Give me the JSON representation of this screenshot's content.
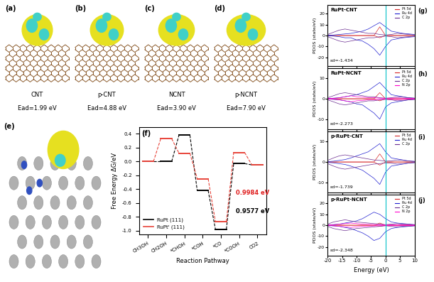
{
  "structures": [
    {
      "label": "(a)",
      "name": "CNT",
      "energy": "Ead=1.99 eV"
    },
    {
      "label": "(b)",
      "name": "p-CNT",
      "energy": "Ead=4.88 eV"
    },
    {
      "label": "(c)",
      "name": "NCNT",
      "energy": "Ead=3.90 eV"
    },
    {
      "label": "(d)",
      "name": "p-NCNT",
      "energy": "Ead=7.90 eV"
    }
  ],
  "panel_e": {
    "label": "(e)"
  },
  "chart_data": [
    {
      "panel": "(f)",
      "type": "profile",
      "categories": [
        "CH3OH",
        "CH2OH",
        "*CHOH",
        "*COH",
        "*CO",
        "*COOH",
        "CO2"
      ],
      "xlabel": "Reaction Pathway",
      "ylabel": "Free Energy ΔG/eV",
      "ylim": [
        -1.05,
        0.5
      ],
      "yticks": [
        -1.0,
        -0.8,
        -0.6,
        -0.4,
        -0.2,
        0.0,
        0.2,
        0.4
      ],
      "legend": "lower left",
      "series": [
        {
          "name": "RuPt (111)",
          "color": "#000000",
          "values": [
            0.0,
            0.0,
            0.38,
            -0.42,
            -0.98,
            -0.03,
            -0.05
          ]
        },
        {
          "name": "RuPt' (111)",
          "color": "#e8443a",
          "values": [
            0.0,
            0.33,
            0.12,
            -0.25,
            -0.87,
            0.13,
            -0.05
          ]
        }
      ],
      "annotations": [
        {
          "text": "0.9984 eV",
          "color": "#e02020"
        },
        {
          "text": "0.9577 eV",
          "color": "#000000"
        }
      ]
    },
    {
      "panel": "(g)",
      "type": "line",
      "title": "RuPt-CNT",
      "annotation": "εd=-1.434",
      "ylabel": "PDOS (state/eV)",
      "tick_labels": "y",
      "legend": "upper right",
      "fermi_level": 0,
      "x": [
        -20,
        -18,
        -16,
        -14,
        -12,
        -10,
        -8,
        -6,
        -4,
        -2,
        0,
        2,
        4,
        6,
        8,
        10
      ],
      "xlim": [
        -20,
        10
      ],
      "xticks": [
        -20,
        -15,
        -10,
        -5,
        0,
        5,
        10
      ],
      "ylim": [
        -28,
        28
      ],
      "yticks": [
        -20,
        -10,
        0,
        10,
        20
      ],
      "series": [
        {
          "name": "Pt 5d",
          "color": "#d62728",
          "values": [
            0,
            0,
            0,
            0,
            0,
            0,
            0,
            0,
            0,
            8,
            0,
            0,
            0,
            0,
            0,
            0
          ],
          "spin_down": [
            0,
            0,
            0,
            0,
            0,
            0,
            0,
            0,
            0,
            -2,
            0,
            0,
            0,
            0,
            0,
            0
          ]
        },
        {
          "name": "Ru 4d",
          "color": "#2020d0",
          "values": [
            0.2,
            0.5,
            1,
            1.5,
            2,
            3,
            4,
            6,
            9,
            12,
            8,
            4,
            3,
            2,
            1.5,
            1
          ],
          "spin_down": [
            -0.2,
            -0.5,
            -1,
            -2,
            -2,
            -4,
            -5,
            -8,
            -12,
            -18,
            -10,
            -4,
            -3,
            -2,
            -1.5,
            -1
          ]
        },
        {
          "name": "C 2p",
          "color": "#6a2c91",
          "values": [
            1,
            3,
            5,
            6,
            5,
            4,
            3,
            2,
            2,
            1,
            0.5,
            1,
            2,
            1.5,
            1,
            0.5
          ],
          "spin_down": [
            -1,
            -3,
            -5,
            -6,
            -5,
            -4,
            -3,
            -2,
            -2,
            -1,
            -0.5,
            -1,
            -2,
            -1.5,
            -1,
            -0.5
          ]
        }
      ]
    },
    {
      "panel": "(h)",
      "type": "line",
      "title": "RuPt-NCNT",
      "annotation": "εd=-2.273",
      "ylabel": "PDOS (state/eV)",
      "tick_labels": "y",
      "legend": "upper right",
      "fermi_level": 0,
      "x": [
        -20,
        -18,
        -16,
        -14,
        -12,
        -10,
        -8,
        -6,
        -4,
        -2,
        0,
        2,
        4,
        6,
        8,
        10
      ],
      "xlim": [
        -20,
        10
      ],
      "xticks": [
        -20,
        -15,
        -10,
        -5,
        0,
        5,
        10
      ],
      "ylim": [
        -15,
        15
      ],
      "yticks": [
        -10,
        0,
        10
      ],
      "series": [
        {
          "name": "Pt 5d",
          "color": "#d62728",
          "values": [
            0,
            0,
            0,
            0,
            0,
            0,
            0,
            0,
            0,
            3,
            0,
            0,
            0,
            0,
            0,
            0
          ],
          "spin_down": [
            0,
            0,
            0,
            0,
            0,
            0,
            0,
            0,
            0,
            -1,
            0,
            0,
            0,
            0,
            0,
            0
          ]
        },
        {
          "name": "Ru 4d",
          "color": "#2020d0",
          "values": [
            0.1,
            0.3,
            0.5,
            1,
            1.5,
            2,
            3,
            4,
            6,
            8,
            5,
            2,
            1.5,
            1,
            0.5,
            0.3
          ],
          "spin_down": [
            -0.1,
            -0.3,
            -0.5,
            -1,
            -1.5,
            -2.5,
            -3,
            -5,
            -7,
            -10,
            -4,
            -2,
            -1.5,
            -1,
            -0.5,
            -0.3
          ]
        },
        {
          "name": "C 2p",
          "color": "#6a2c91",
          "values": [
            0.5,
            1.5,
            2.5,
            3,
            2.5,
            2,
            1.5,
            1,
            1,
            0.5,
            0.3,
            0.5,
            1,
            0.8,
            0.5,
            0.3
          ],
          "spin_down": [
            -0.5,
            -1.5,
            -2.5,
            -3,
            -2.5,
            -2,
            -1.5,
            -1,
            -1,
            -0.5,
            -0.3,
            -0.5,
            -1,
            -0.8,
            -0.5,
            -0.3
          ]
        },
        {
          "name": "N 2p",
          "color": "#ff00cc",
          "values": [
            0.1,
            0.2,
            0.5,
            1,
            1.5,
            1,
            0.8,
            0.5,
            0.5,
            0.3,
            0.2,
            0.3,
            0.4,
            0.3,
            0.2,
            0.1
          ],
          "spin_down": [
            -0.1,
            -0.2,
            -0.5,
            -1,
            -1.5,
            -1,
            -0.8,
            -0.5,
            -0.5,
            -0.3,
            -0.2,
            -0.3,
            -0.4,
            -0.3,
            -0.2,
            -0.1
          ]
        }
      ]
    },
    {
      "panel": "(i)",
      "type": "line",
      "title": "p-RuPt-CNT",
      "annotation": "εd=-1.739",
      "ylabel": "PDOS (state/eV)",
      "tick_labels": "y",
      "legend": "upper right",
      "fermi_level": 0,
      "x": [
        -20,
        -18,
        -16,
        -14,
        -12,
        -10,
        -8,
        -6,
        -4,
        -2,
        0,
        2,
        4,
        6,
        8,
        10
      ],
      "xlim": [
        -20,
        10
      ],
      "xticks": [
        -20,
        -15,
        -10,
        -5,
        0,
        5,
        10
      ],
      "ylim": [
        -15,
        15
      ],
      "yticks": [
        -10,
        0,
        10
      ],
      "series": [
        {
          "name": "Pt 5d",
          "color": "#d62728",
          "values": [
            0,
            0,
            0,
            0,
            0,
            0,
            0,
            0,
            0,
            4,
            0,
            0,
            0,
            0,
            0,
            0
          ],
          "spin_down": [
            0,
            0,
            0,
            0,
            0,
            0,
            0,
            0,
            0,
            -1.5,
            0,
            0,
            0,
            0,
            0,
            0
          ]
        },
        {
          "name": "Ru 4d",
          "color": "#2020d0",
          "values": [
            0.2,
            0.4,
            0.8,
            1.2,
            2,
            3,
            4,
            5,
            7,
            9,
            5,
            2,
            1.5,
            1,
            0.5,
            0.3
          ],
          "spin_down": [
            -0.2,
            -0.4,
            -0.8,
            -1.2,
            -2,
            -3,
            -4,
            -6,
            -8,
            -11,
            -5,
            -2,
            -1.5,
            -1,
            -0.5,
            -0.3
          ]
        },
        {
          "name": "C 2p",
          "color": "#6a2c91",
          "values": [
            0.8,
            2,
            3,
            3.5,
            3,
            2.5,
            2,
            1.5,
            1,
            0.8,
            0.4,
            0.6,
            1,
            0.8,
            0.5,
            0.3
          ],
          "spin_down": [
            -0.8,
            -2,
            -3,
            -3.5,
            -3,
            -2.5,
            -2,
            -1.5,
            -1,
            -0.8,
            -0.4,
            -0.6,
            -1,
            -0.8,
            -0.5,
            -0.3
          ]
        }
      ]
    },
    {
      "panel": "(j)",
      "type": "line",
      "title": "p-RuPt-NCNT",
      "annotation": "εd=-2.348",
      "xlabel": "Energy (eV)",
      "ylabel": "PDOS (state/eV)",
      "legend": "upper right",
      "fermi_level": 0,
      "x": [
        -20,
        -18,
        -16,
        -14,
        -12,
        -10,
        -8,
        -6,
        -4,
        -2,
        0,
        2,
        4,
        6,
        8,
        10
      ],
      "xlim": [
        -20,
        10
      ],
      "xticks": [
        -20,
        -15,
        -10,
        -5,
        0,
        5,
        10
      ],
      "ylim": [
        -28,
        28
      ],
      "yticks": [
        -20,
        -10,
        0,
        10,
        20
      ],
      "series": [
        {
          "name": "Pt 5d",
          "color": "#d62728",
          "values": [
            0,
            0,
            0,
            0,
            0,
            0,
            0,
            0,
            0,
            2,
            0,
            0,
            0,
            0,
            0,
            0
          ],
          "spin_down": [
            0,
            0,
            0,
            0,
            0,
            0,
            0,
            0,
            0,
            -1,
            0,
            0,
            0,
            0,
            0,
            0
          ]
        },
        {
          "name": "Ru 4d",
          "color": "#2020d0",
          "values": [
            0.3,
            0.6,
            1,
            2,
            3,
            4,
            6,
            9,
            12,
            10,
            6,
            3,
            2,
            1.5,
            1,
            0.5
          ],
          "spin_down": [
            -0.3,
            -0.6,
            -1,
            -2,
            -3,
            -5,
            -7,
            -10,
            -14,
            -12,
            -6,
            -3,
            -2,
            -1.5,
            -1,
            -0.5
          ]
        },
        {
          "name": "C 2p",
          "color": "#6a2c91",
          "values": [
            1,
            3,
            4,
            5,
            4,
            3,
            2.5,
            2,
            1.5,
            1,
            0.5,
            1,
            1.5,
            1,
            0.8,
            0.5
          ],
          "spin_down": [
            -1,
            -3,
            -4,
            -5,
            -4,
            -3,
            -2.5,
            -2,
            -1.5,
            -1,
            -0.5,
            -1,
            -1.5,
            -1,
            -0.8,
            -0.5
          ]
        },
        {
          "name": "N 2p",
          "color": "#ff00cc",
          "values": [
            0.2,
            0.5,
            1,
            1.5,
            2,
            1.5,
            1,
            0.8,
            0.6,
            0.4,
            0.2,
            0.3,
            0.5,
            0.3,
            0.2,
            0.1
          ],
          "spin_down": [
            -0.2,
            -0.5,
            -1,
            -1.5,
            -2,
            -1.5,
            -1,
            -0.8,
            -0.6,
            -0.4,
            -0.2,
            -0.3,
            -0.5,
            -0.3,
            -0.2,
            -0.1
          ]
        }
      ]
    }
  ]
}
